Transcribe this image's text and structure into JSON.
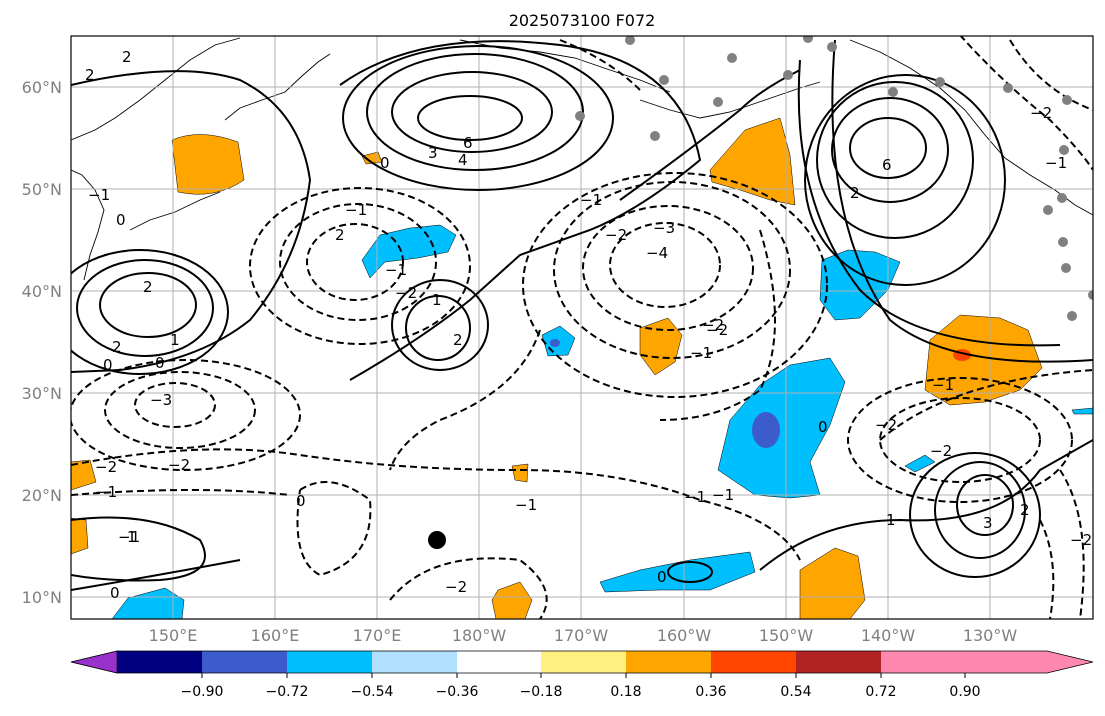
{
  "title": "2025073100 F072",
  "lat_labels": [
    "60°N",
    "50°N",
    "40°N",
    "30°N",
    "20°N",
    "10°N"
  ],
  "lon_labels": [
    "150°E",
    "160°E",
    "170°E",
    "180°W",
    "170°W",
    "160°W",
    "150°W",
    "140°W",
    "130°W"
  ],
  "colorbar": {
    "colors": [
      "#9932cc",
      "#000080",
      "#3c5ccc",
      "#00bfff",
      "#b0e0ff",
      "#ffffff",
      "#fff080",
      "#ffa500",
      "#ff4500",
      "#b22222",
      "#ff88b0"
    ],
    "tick_labels": [
      "−0.90",
      "−0.72",
      "−0.54",
      "−0.36",
      "−0.18",
      "0.18",
      "0.36",
      "0.54",
      "0.72",
      "0.90"
    ]
  },
  "contour_labels": [
    "2",
    "2",
    "0",
    "−1",
    "2",
    "1",
    "3",
    "4",
    "6",
    "−2",
    "0",
    "−1",
    "−2",
    "−1",
    "−1",
    "2",
    "2",
    "2",
    "0",
    "0",
    "1",
    "−3",
    "−2",
    "−1",
    "−1",
    "−2",
    "−3",
    "−4",
    "2",
    "6",
    "−1",
    "−2",
    "−1",
    "−2",
    "−2",
    "−1",
    "−2",
    "−2",
    "0",
    "−1",
    "0",
    "−1",
    "−1",
    "1",
    "3",
    "2",
    "−2",
    "1",
    "0",
    "0",
    "−2"
  ],
  "colors": {
    "positive": "#ffa500",
    "positive_strong": "#ff4500",
    "negative": "#00bfff",
    "negative_strong": "#3c5ccc",
    "marker": "#808080"
  }
}
